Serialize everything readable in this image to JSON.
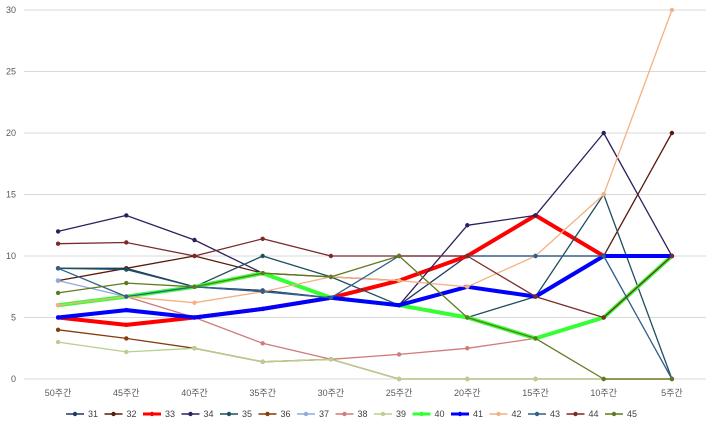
{
  "chart_data": {
    "type": "line",
    "categories": [
      "50주간",
      "45주간",
      "40주간",
      "35주간",
      "30주간",
      "25주간",
      "20주간",
      "15주간",
      "10주간",
      "5주간"
    ],
    "ylim": [
      0,
      30
    ],
    "yticks": [
      0,
      5,
      10,
      15,
      20,
      25,
      30
    ],
    "grid": true,
    "legend_position": "bottom",
    "series": [
      {
        "name": "31",
        "color": "#1f3864",
        "width": 1.3,
        "values": [
          9,
          9,
          7.5,
          7.2,
          6.6,
          6,
          10,
          10,
          10,
          10
        ]
      },
      {
        "name": "32",
        "color": "#5a1a0a",
        "width": 1.3,
        "values": [
          8,
          9,
          10,
          8.6,
          8.3,
          8,
          10,
          13.3,
          10,
          20
        ]
      },
      {
        "name": "33",
        "color": "#ff0000",
        "width": 4,
        "values": [
          5,
          4.4,
          5,
          5.7,
          6.6,
          8,
          10,
          13.3,
          10,
          10
        ]
      },
      {
        "name": "34",
        "color": "#2e1f5e",
        "width": 1.3,
        "values": [
          12,
          13.3,
          11.3,
          8.6,
          6.6,
          6,
          12.5,
          13.3,
          20,
          10
        ]
      },
      {
        "name": "35",
        "color": "#1f4e5f",
        "width": 1.3,
        "values": [
          9,
          8.9,
          7.5,
          10,
          8.3,
          6,
          5,
          6.7,
          15,
          0
        ]
      },
      {
        "name": "36",
        "color": "#843c0c",
        "width": 1.3,
        "values": [
          4,
          3.3,
          2.5,
          1.4,
          1.6,
          0,
          0,
          0,
          0,
          0
        ]
      },
      {
        "name": "37",
        "color": "#8faadc",
        "width": 1.3,
        "values": [
          8,
          6.7,
          7.5,
          7.1,
          6.6,
          6,
          5,
          3.3,
          5,
          10
        ]
      },
      {
        "name": "38",
        "color": "#d07a7a",
        "width": 1.3,
        "values": [
          6,
          6.7,
          5,
          2.9,
          1.6,
          2,
          2.5,
          3.3,
          5,
          10
        ]
      },
      {
        "name": "39",
        "color": "#b7cf8f",
        "width": 1.3,
        "values": [
          3,
          2.2,
          2.5,
          1.4,
          1.6,
          0,
          0,
          0,
          0,
          0
        ]
      },
      {
        "name": "40",
        "color": "#33ff33",
        "width": 4,
        "values": [
          6,
          6.7,
          7.5,
          8.6,
          6.6,
          6,
          5,
          3.3,
          5,
          10
        ]
      },
      {
        "name": "41",
        "color": "#0000ff",
        "width": 4,
        "values": [
          5,
          5.6,
          5,
          5.7,
          6.6,
          6,
          7.5,
          6.7,
          10,
          10
        ]
      },
      {
        "name": "42",
        "color": "#f4b183",
        "width": 1.3,
        "values": [
          6,
          6.7,
          6.2,
          7.1,
          8.3,
          8,
          7.5,
          10,
          15,
          30
        ]
      },
      {
        "name": "43",
        "color": "#2f5f8a",
        "width": 1.3,
        "values": [
          9,
          6.7,
          7.5,
          7.1,
          6.6,
          10,
          10,
          10,
          10,
          0
        ]
      },
      {
        "name": "44",
        "color": "#7b2a2a",
        "width": 1.3,
        "values": [
          11,
          11.1,
          10,
          11.4,
          10,
          10,
          10,
          6.7,
          5,
          10
        ]
      },
      {
        "name": "45",
        "color": "#5f7a1f",
        "width": 1.3,
        "values": [
          7,
          7.8,
          7.5,
          8.6,
          8.3,
          10,
          5,
          3.3,
          0,
          0
        ]
      }
    ]
  }
}
